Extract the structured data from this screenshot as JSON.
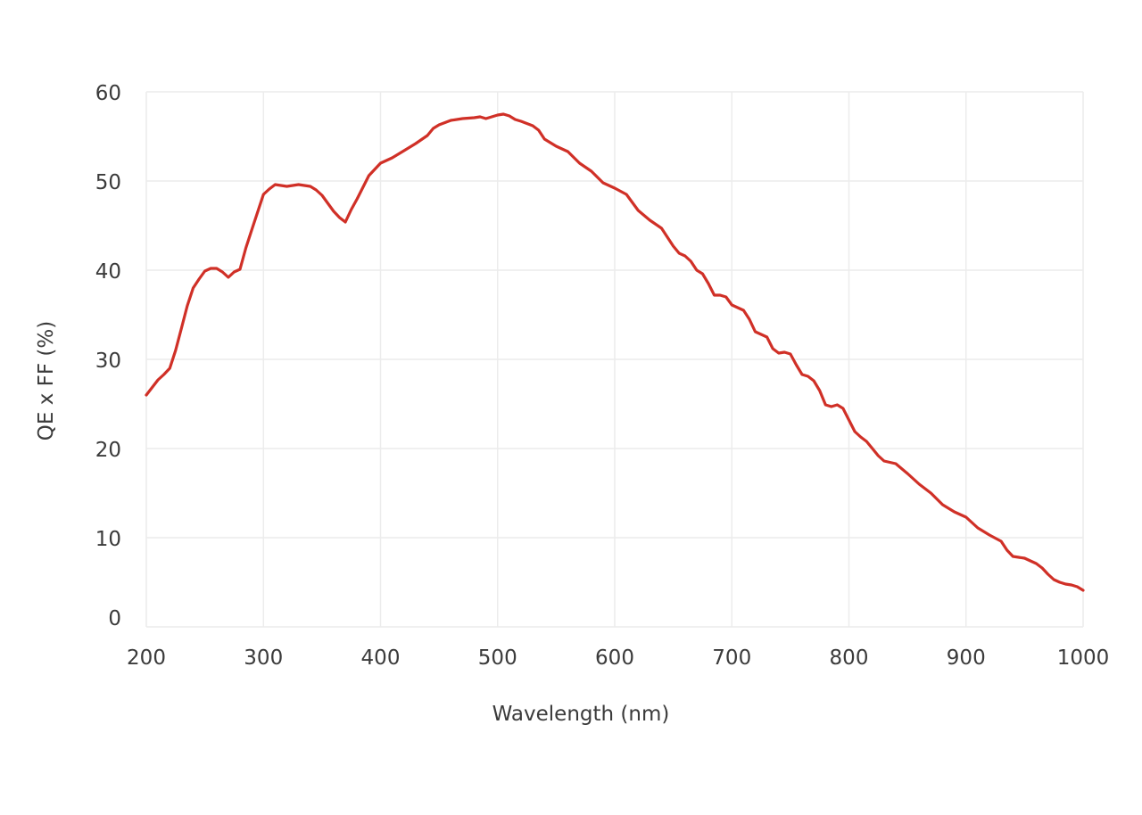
{
  "chart_data": {
    "type": "line",
    "title": "",
    "xlabel": "Wavelength (nm)",
    "ylabel": "QE x FF (%)",
    "xlim": [
      200,
      1000
    ],
    "ylim": [
      0,
      60
    ],
    "x_ticks": [
      200,
      300,
      400,
      500,
      600,
      700,
      800,
      900,
      1000
    ],
    "y_ticks": [
      0,
      10,
      20,
      30,
      40,
      50,
      60
    ],
    "grid": true,
    "legend": "none",
    "series": [
      {
        "color": "#d03027",
        "x": [
          200,
          210,
          215,
          220,
          225,
          230,
          235,
          240,
          245,
          250,
          255,
          260,
          265,
          270,
          275,
          280,
          285,
          290,
          295,
          300,
          305,
          310,
          320,
          330,
          340,
          345,
          350,
          360,
          365,
          370,
          375,
          380,
          390,
          400,
          410,
          420,
          430,
          440,
          445,
          450,
          460,
          470,
          480,
          485,
          490,
          500,
          505,
          510,
          515,
          520,
          530,
          535,
          540,
          550,
          560,
          570,
          580,
          590,
          600,
          610,
          620,
          630,
          640,
          650,
          655,
          660,
          665,
          670,
          675,
          680,
          685,
          690,
          695,
          700,
          705,
          710,
          715,
          720,
          725,
          730,
          735,
          740,
          745,
          750,
          755,
          760,
          765,
          770,
          775,
          780,
          785,
          790,
          795,
          800,
          805,
          810,
          815,
          820,
          825,
          830,
          840,
          850,
          860,
          870,
          880,
          890,
          900,
          910,
          920,
          930,
          935,
          940,
          945,
          950,
          955,
          960,
          965,
          970,
          975,
          980,
          985,
          990,
          995,
          1000
        ],
        "y": [
          26,
          27.7,
          28.3,
          29,
          31,
          33.5,
          36,
          38,
          39,
          39.9,
          40.2,
          40.2,
          39.8,
          39.2,
          39.8,
          40.1,
          42.5,
          44.5,
          46.5,
          48.5,
          49.1,
          49.6,
          49.4,
          49.6,
          49.4,
          49,
          48.4,
          46.6,
          45.9,
          45.4,
          46.8,
          48,
          50.6,
          52,
          52.6,
          53.4,
          54.2,
          55.1,
          55.9,
          56.3,
          56.8,
          57,
          57.1,
          57.2,
          57,
          57.4,
          57.5,
          57.3,
          56.9,
          56.7,
          56.2,
          55.7,
          54.7,
          53.9,
          53.3,
          52,
          51.1,
          49.8,
          49.2,
          48.5,
          46.7,
          45.6,
          44.7,
          42.7,
          41.9,
          41.6,
          41,
          40,
          39.6,
          38.5,
          37.2,
          37.2,
          37,
          36.1,
          35.8,
          35.5,
          34.5,
          33.1,
          32.8,
          32.5,
          31.2,
          30.7,
          30.8,
          30.6,
          29.4,
          28.3,
          28.1,
          27.6,
          26.5,
          24.9,
          24.7,
          24.9,
          24.5,
          23.2,
          21.9,
          21.3,
          20.8,
          20,
          19.2,
          18.6,
          18.3,
          17.2,
          16,
          15,
          13.7,
          12.9,
          12.3,
          11.1,
          10.3,
          9.6,
          8.6,
          7.9,
          7.8,
          7.7,
          7.4,
          7.1,
          6.6,
          5.9,
          5.3,
          5,
          4.8,
          4.7,
          4.5,
          4.1
        ]
      }
    ]
  }
}
